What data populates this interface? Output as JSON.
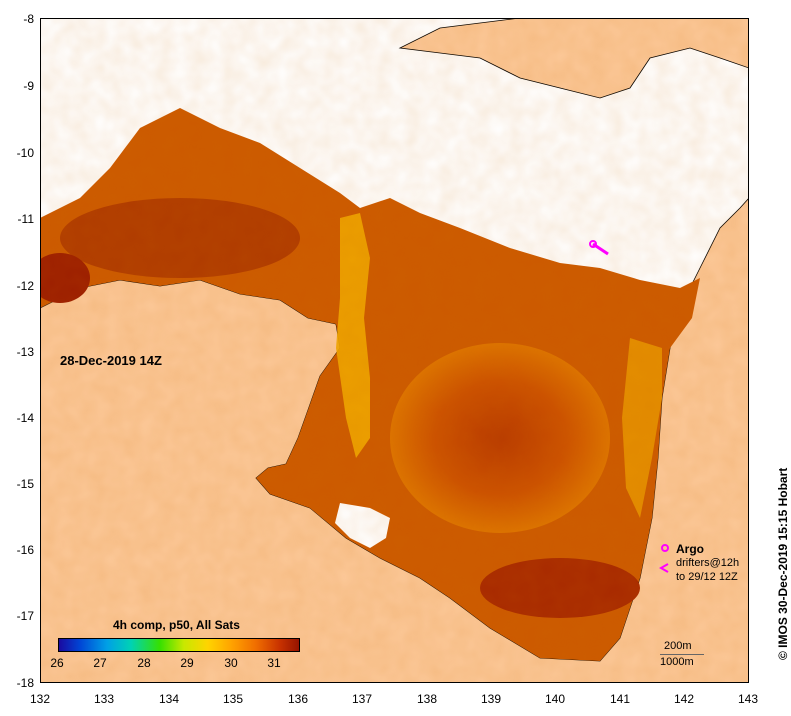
{
  "map": {
    "timestamp": "28-Dec-2019 14Z",
    "x_ticks": [
      "132",
      "133",
      "134",
      "135",
      "136",
      "137",
      "138",
      "139",
      "140",
      "141",
      "142",
      "143"
    ],
    "y_ticks": [
      "-8",
      "-9",
      "-10",
      "-11",
      "-12",
      "-13",
      "-14",
      "-15",
      "-16",
      "-17",
      "-18"
    ],
    "colorbar": {
      "title": "4h comp, p50, All Sats",
      "ticks": [
        "26",
        "27",
        "28",
        "29",
        "30",
        "31"
      ]
    },
    "legend": {
      "argo_label": "Argo",
      "drifters_label": "drifters@12h",
      "drifters_sub": "to 29/12 12Z",
      "argo_color": "#ff00ff"
    },
    "scale": {
      "contour_1": "200m",
      "contour_2": "1000m"
    },
    "credit": "© IMOS 30-Dec-2019 15:15 Hobart",
    "colors": {
      "land": "#fcc898",
      "no_data": "#ffffff",
      "warm": "#c84a00",
      "hot": "#a02800",
      "cool": "#f0a000"
    }
  }
}
